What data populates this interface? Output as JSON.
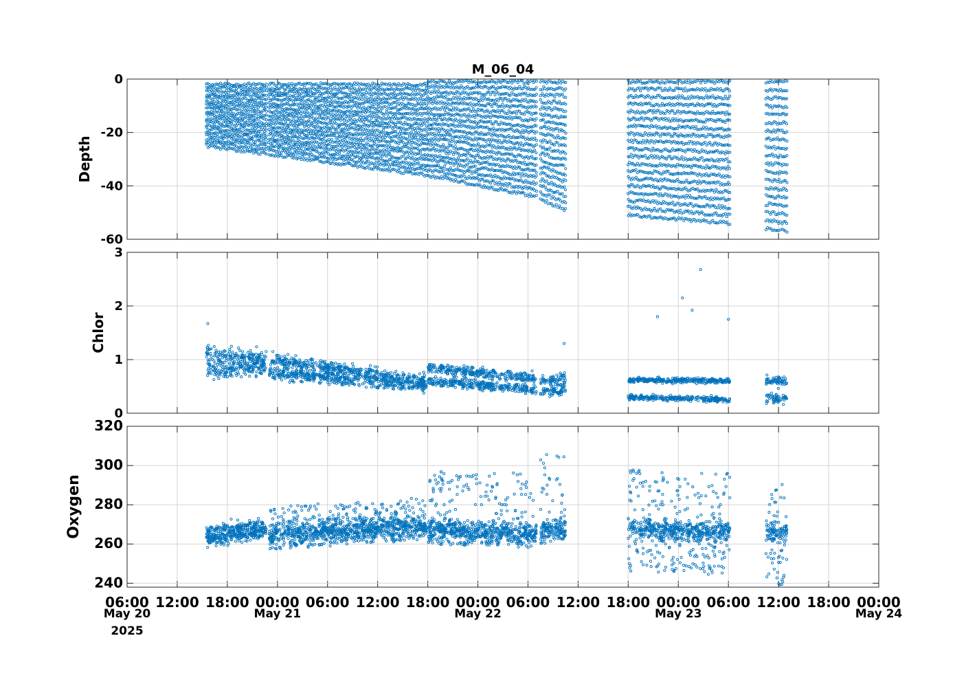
{
  "chart_data": {
    "type": "scatter",
    "title": "M_06_04",
    "marker_color": "#0072BD",
    "grid": true,
    "x_axis": {
      "ticks": [
        "06:00",
        "12:00",
        "18:00",
        "00:00",
        "06:00",
        "12:00",
        "18:00",
        "00:00",
        "06:00",
        "12:00",
        "18:00",
        "00:00",
        "06:00",
        "12:00",
        "18:00",
        "00:00"
      ],
      "tick_hours": [
        0,
        6,
        12,
        18,
        24,
        30,
        36,
        42,
        48,
        54,
        60,
        66,
        72,
        78,
        84,
        90
      ],
      "date_labels": [
        {
          "text": "May 20",
          "hour": 0
        },
        {
          "text": "May 21",
          "hour": 18
        },
        {
          "text": "May 22",
          "hour": 42
        },
        {
          "text": "May 23",
          "hour": 66
        },
        {
          "text": "May 24",
          "hour": 90
        }
      ],
      "year_label": "2025",
      "range": [
        "2025-05-20 06:00",
        "2025-05-24 00:00"
      ]
    },
    "panels": [
      {
        "ylabel": "Depth",
        "ylim": [
          -60,
          0
        ],
        "yticks": [
          -60,
          -40,
          -20,
          0
        ],
        "ytick_labels": [
          "-60",
          "-40",
          "-20",
          "0"
        ],
        "segments": [
          {
            "start": "2025-05-20 15:30",
            "end": "2025-05-20 22:40",
            "min_depth_start": -25,
            "min_depth_end": -28,
            "surface": -2
          },
          {
            "start": "2025-05-20 23:00",
            "end": "2025-05-21 17:50",
            "min_depth_start": -28,
            "min_depth_end": -36,
            "surface": -2
          },
          {
            "start": "2025-05-21 18:00",
            "end": "2025-05-22 07:00",
            "min_depth_start": -36,
            "min_depth_end": -44,
            "surface": -1
          },
          {
            "start": "2025-05-22 07:30",
            "end": "2025-05-22 10:30",
            "min_depth_start": -45,
            "min_depth_end": -49,
            "surface": -1
          },
          {
            "start": "2025-05-22 18:00",
            "end": "2025-05-23 06:10",
            "min_depth_start": -51,
            "min_depth_end": -54,
            "surface": -1
          },
          {
            "start": "2025-05-23 10:30",
            "end": "2025-05-23 13:00",
            "min_depth_start": -56,
            "min_depth_end": -57,
            "surface": -1
          }
        ]
      },
      {
        "ylabel": "Chlor",
        "ylim": [
          0,
          3
        ],
        "yticks": [
          0,
          1,
          2,
          3
        ],
        "ytick_labels": [
          "0",
          "1",
          "2",
          "3"
        ],
        "segments": [
          {
            "start": "2025-05-20 15:30",
            "end": "2025-05-20 22:40",
            "upper_start": 1.1,
            "upper_end": 1.0,
            "lower_start": 0.8,
            "lower_end": 0.85,
            "scatter": 0.15
          },
          {
            "start": "2025-05-20 23:00",
            "end": "2025-05-21 17:50",
            "upper_start": 1.0,
            "upper_end": 0.6,
            "lower_start": 0.75,
            "lower_end": 0.5,
            "scatter": 0.12
          },
          {
            "start": "2025-05-21 18:00",
            "end": "2025-05-22 07:00",
            "upper_start": 0.85,
            "upper_end": 0.65,
            "lower_start": 0.6,
            "lower_end": 0.45,
            "scatter": 0.1
          },
          {
            "start": "2025-05-22 07:30",
            "end": "2025-05-22 10:30",
            "upper_start": 0.6,
            "upper_end": 0.65,
            "lower_start": 0.4,
            "lower_end": 0.45,
            "scatter": 0.1
          },
          {
            "start": "2025-05-22 18:00",
            "end": "2025-05-23 06:10",
            "upper_start": 0.62,
            "upper_end": 0.6,
            "lower_start": 0.3,
            "lower_end": 0.25,
            "scatter": 0.05
          },
          {
            "start": "2025-05-23 10:30",
            "end": "2025-05-23 13:00",
            "upper_start": 0.6,
            "upper_end": 0.6,
            "lower_start": 0.28,
            "lower_end": 0.28,
            "scatter": 0.1
          }
        ],
        "outliers": [
          {
            "time": "2025-05-20 15:40",
            "value": 1.67
          },
          {
            "time": "2025-05-22 10:20",
            "value": 1.3
          },
          {
            "time": "2025-05-23 00:30",
            "value": 2.15
          },
          {
            "time": "2025-05-23 02:40",
            "value": 2.68
          },
          {
            "time": "2025-05-23 01:40",
            "value": 1.92
          },
          {
            "time": "2025-05-23 06:00",
            "value": 1.75
          },
          {
            "time": "2025-05-22 21:30",
            "value": 1.8
          }
        ]
      },
      {
        "ylabel": "Oxygen",
        "ylim": [
          238,
          320
        ],
        "yticks": [
          240,
          260,
          280,
          300,
          320
        ],
        "ytick_labels": [
          "240",
          "260",
          "280",
          "300",
          "320"
        ],
        "segments": [
          {
            "start": "2025-05-20 15:30",
            "end": "2025-05-20 22:40",
            "center_start": 264,
            "center_end": 268,
            "spread_low": 4,
            "spread_high": 4
          },
          {
            "start": "2025-05-20 23:00",
            "end": "2025-05-21 17:50",
            "center_start": 265,
            "center_end": 270,
            "spread_low": 8,
            "spread_high": 14
          },
          {
            "start": "2025-05-21 18:00",
            "end": "2025-05-22 07:00",
            "center_start": 268,
            "center_end": 266,
            "spread_low": 8,
            "spread_high": 30
          },
          {
            "start": "2025-05-22 07:30",
            "end": "2025-05-22 10:30",
            "center_start": 268,
            "center_end": 268,
            "spread_low": 8,
            "spread_high": 38
          },
          {
            "start": "2025-05-22 18:00",
            "end": "2025-05-23 06:10",
            "center_start": 268,
            "center_end": 266,
            "spread_low": 22,
            "spread_high": 30
          },
          {
            "start": "2025-05-23 10:30",
            "end": "2025-05-23 13:00",
            "center_start": 266,
            "center_end": 266,
            "spread_low": 28,
            "spread_high": 26
          }
        ]
      }
    ]
  }
}
